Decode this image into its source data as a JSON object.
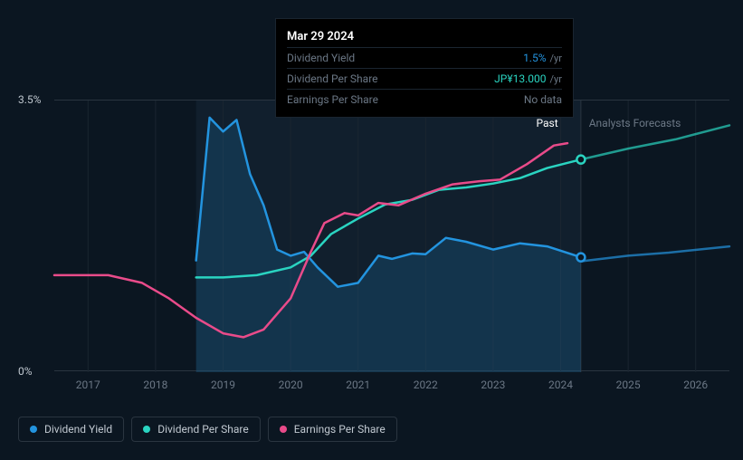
{
  "tooltip": {
    "date": "Mar 29 2024",
    "rows": [
      {
        "label": "Dividend Yield",
        "value": "1.5%",
        "unit": "/yr",
        "color": "#2394df"
      },
      {
        "label": "Dividend Per Share",
        "value": "JP¥13.000",
        "unit": "/yr",
        "color": "#2ad4c1"
      },
      {
        "label": "Earnings Per Share",
        "value": null,
        "unit": null,
        "nodata": "No data"
      }
    ]
  },
  "chart": {
    "type": "line",
    "background_color": "#0b1621",
    "plot_bg_past": "rgba(30,50,70,0.35)",
    "plot_bg_forecast": "transparent",
    "y_axis": {
      "min": 0,
      "max": 3.5,
      "ticks": [
        {
          "v": 0,
          "label": "0%"
        },
        {
          "v": 3.5,
          "label": "3.5%"
        }
      ]
    },
    "x_axis": {
      "min": 2016.5,
      "max": 2026.5,
      "past_start": 2018.6,
      "now": 2024.3,
      "ticks": [
        2017,
        2018,
        2019,
        2020,
        2021,
        2022,
        2023,
        2024,
        2025,
        2026
      ]
    },
    "regions": [
      {
        "label": "Past",
        "x": 2023.8,
        "color": "#ffffff"
      },
      {
        "label": "Analysts Forecasts",
        "x": 2025.1,
        "color": "#6b7785"
      }
    ],
    "series": [
      {
        "name": "Dividend Yield",
        "color": "#2394df",
        "width": 2.5,
        "fill": true,
        "end_marker": true,
        "past": [
          [
            2018.6,
            1.44
          ],
          [
            2018.8,
            3.28
          ],
          [
            2019.0,
            3.1
          ],
          [
            2019.2,
            3.25
          ],
          [
            2019.4,
            2.55
          ],
          [
            2019.6,
            2.15
          ],
          [
            2019.8,
            1.58
          ],
          [
            2020.0,
            1.5
          ],
          [
            2020.2,
            1.55
          ],
          [
            2020.4,
            1.35
          ],
          [
            2020.7,
            1.1
          ],
          [
            2021.0,
            1.15
          ],
          [
            2021.3,
            1.5
          ],
          [
            2021.5,
            1.46
          ],
          [
            2021.8,
            1.53
          ],
          [
            2022.0,
            1.52
          ],
          [
            2022.3,
            1.73
          ],
          [
            2022.6,
            1.68
          ],
          [
            2023.0,
            1.58
          ],
          [
            2023.4,
            1.66
          ],
          [
            2023.8,
            1.62
          ],
          [
            2024.3,
            1.48
          ]
        ],
        "forecast": [
          [
            2024.3,
            1.48
          ],
          [
            2024.32,
            1.43
          ],
          [
            2025.0,
            1.5
          ],
          [
            2025.6,
            1.54
          ],
          [
            2026.5,
            1.62
          ]
        ]
      },
      {
        "name": "Dividend Per Share",
        "color": "#2ad4c1",
        "width": 2.5,
        "fill": false,
        "end_marker": true,
        "past": [
          [
            2018.6,
            1.22
          ],
          [
            2019.0,
            1.22
          ],
          [
            2019.5,
            1.25
          ],
          [
            2020.0,
            1.35
          ],
          [
            2020.3,
            1.5
          ],
          [
            2020.6,
            1.78
          ],
          [
            2021.0,
            1.98
          ],
          [
            2021.4,
            2.16
          ],
          [
            2021.8,
            2.22
          ],
          [
            2022.2,
            2.35
          ],
          [
            2022.6,
            2.38
          ],
          [
            2023.0,
            2.43
          ],
          [
            2023.4,
            2.5
          ],
          [
            2023.8,
            2.63
          ],
          [
            2024.3,
            2.74
          ]
        ],
        "forecast": [
          [
            2024.3,
            2.74
          ],
          [
            2025.0,
            2.88
          ],
          [
            2025.7,
            3.0
          ],
          [
            2026.5,
            3.18
          ]
        ]
      },
      {
        "name": "Earnings Per Share",
        "color": "#e94b8a",
        "width": 2.5,
        "fill": false,
        "end_marker": false,
        "past": [
          [
            2016.5,
            1.25
          ],
          [
            2017.3,
            1.25
          ],
          [
            2017.8,
            1.15
          ],
          [
            2018.2,
            0.95
          ],
          [
            2018.6,
            0.7
          ],
          [
            2019.0,
            0.5
          ],
          [
            2019.3,
            0.45
          ],
          [
            2019.6,
            0.55
          ],
          [
            2020.0,
            0.95
          ],
          [
            2020.3,
            1.55
          ],
          [
            2020.5,
            1.92
          ],
          [
            2020.8,
            2.05
          ],
          [
            2021.0,
            2.02
          ],
          [
            2021.3,
            2.18
          ],
          [
            2021.6,
            2.15
          ],
          [
            2022.0,
            2.3
          ],
          [
            2022.4,
            2.42
          ],
          [
            2022.8,
            2.46
          ],
          [
            2023.1,
            2.48
          ],
          [
            2023.5,
            2.68
          ],
          [
            2023.9,
            2.92
          ],
          [
            2024.1,
            2.95
          ]
        ],
        "forecast": []
      }
    ],
    "legend": [
      {
        "label": "Dividend Yield",
        "color": "#2394df"
      },
      {
        "label": "Dividend Per Share",
        "color": "#2ad4c1"
      },
      {
        "label": "Earnings Per Share",
        "color": "#e94b8a"
      }
    ]
  }
}
